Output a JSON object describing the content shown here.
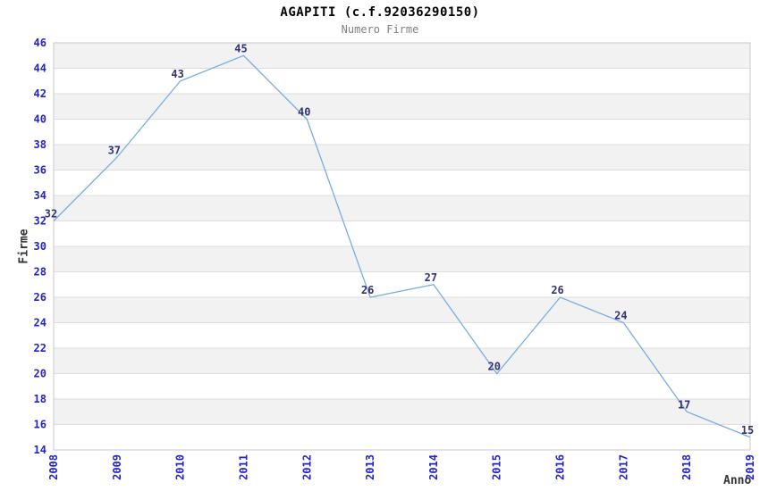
{
  "chart_data": {
    "type": "line",
    "title": "AGAPITI (c.f.92036290150)",
    "subtitle": "Numero Firme",
    "xlabel": "Anno",
    "ylabel": "Firme",
    "categories": [
      "2008",
      "2009",
      "2010",
      "2011",
      "2012",
      "2013",
      "2014",
      "2015",
      "2016",
      "2017",
      "2018",
      "2019"
    ],
    "series": [
      {
        "name": "Numero Firme",
        "values": [
          32,
          37,
          43,
          45,
          40,
          26,
          27,
          20,
          26,
          24,
          17,
          15
        ]
      }
    ],
    "ylim": [
      14,
      46
    ],
    "ytick_step": 2,
    "grid": "horizontal gridlines with alternating gray bands",
    "legend": "none",
    "point_markers": false,
    "colors": {
      "line": "#79ade2",
      "tick_labels": "#2323c8",
      "point_labels": "#333377",
      "axis_titles": "#333333",
      "title": "#000000",
      "subtitle": "#808080",
      "grid_line": "#dedede",
      "band_fill": "#f2f2f2",
      "plot_border": "#c9c9c9",
      "background": "#ffffff"
    }
  }
}
